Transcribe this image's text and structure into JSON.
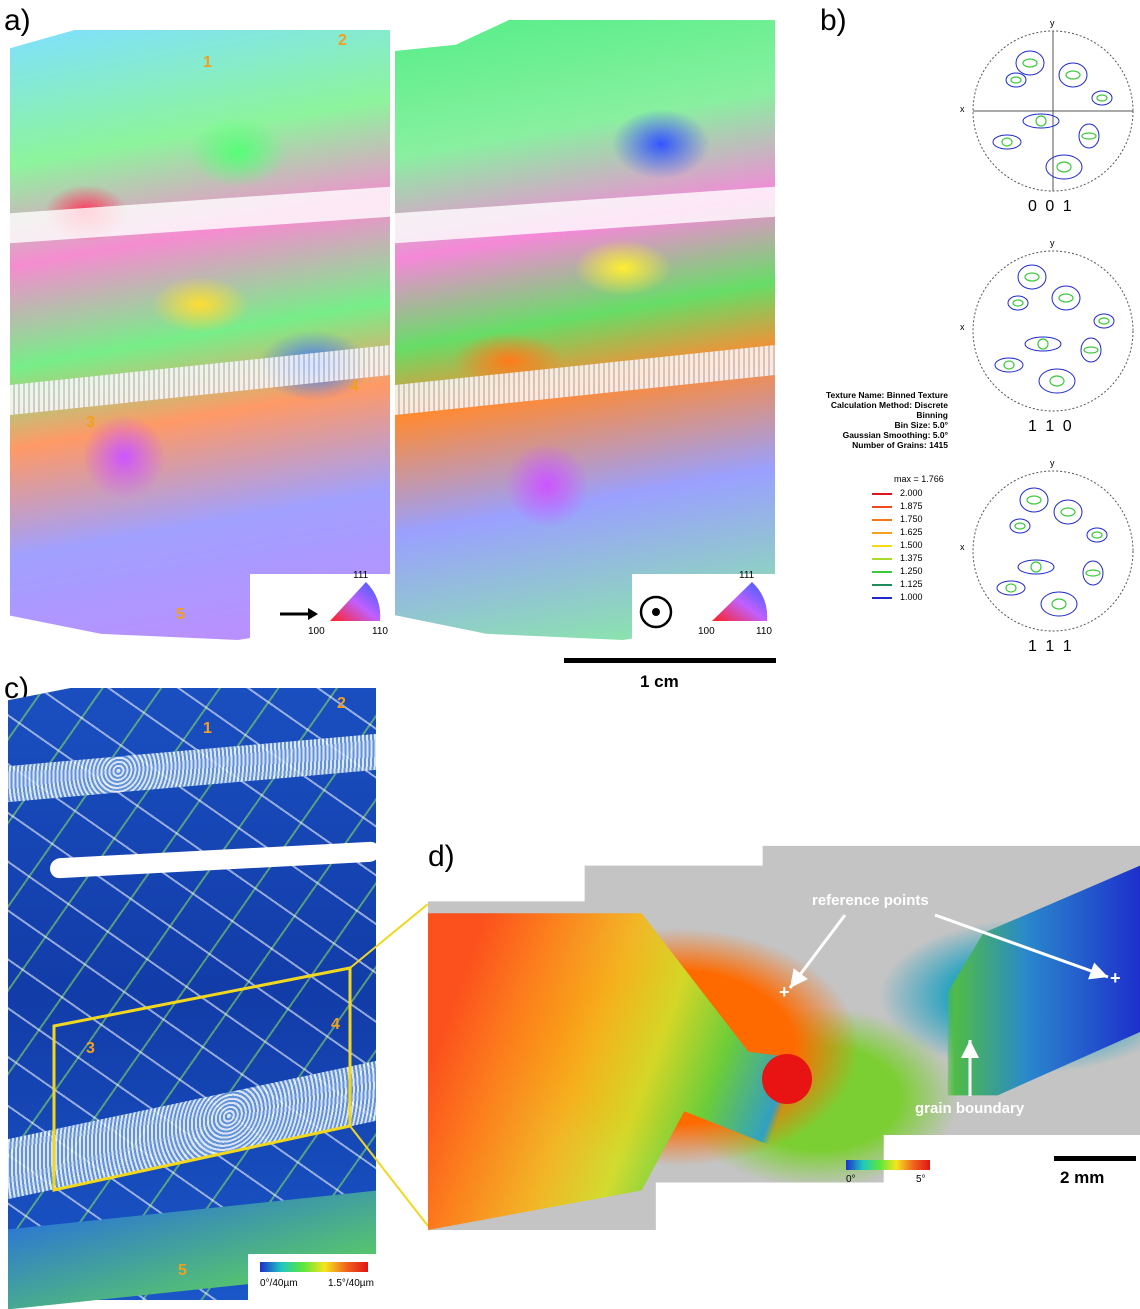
{
  "panels": {
    "a": "a)",
    "b": "b)",
    "c": "c)",
    "d": "d)"
  },
  "grain_numbers": [
    "1",
    "2",
    "3",
    "4",
    "5"
  ],
  "ipf_key": {
    "top": "111",
    "left": "100",
    "right": "110"
  },
  "scale_bars": {
    "main": "1 cm",
    "detail": "2 mm"
  },
  "texture_info": [
    "Texture Name: Binned Texture",
    "Calculation Method: Discrete Binning",
    "Bin Size: 5.0°",
    "Gaussian Smoothing: 5.0°",
    "Number of Grains: 1415"
  ],
  "pf_legend": {
    "max": "max = 1.766",
    "levels": [
      {
        "value": "2.000",
        "color": "#e0141e"
      },
      {
        "value": "1.875",
        "color": "#f04a1e"
      },
      {
        "value": "1.750",
        "color": "#f5781e"
      },
      {
        "value": "1.625",
        "color": "#f5a01e"
      },
      {
        "value": "1.500",
        "color": "#f5dc14"
      },
      {
        "value": "1.375",
        "color": "#a8dc28"
      },
      {
        "value": "1.250",
        "color": "#3cc83c"
      },
      {
        "value": "1.125",
        "color": "#1e8c5a"
      },
      {
        "value": "1.000",
        "color": "#1e28c8"
      }
    ]
  },
  "pole_figures": [
    {
      "label": "0 0 1",
      "x_axis": "x",
      "y_axis": "y"
    },
    {
      "label": "1 1 0",
      "x_axis": "x",
      "y_axis": "y"
    },
    {
      "label": "1 1 1",
      "x_axis": "x",
      "y_axis": "y"
    }
  ],
  "kam_scale": {
    "min": "0°/40µm",
    "max": "1.5°/40µm"
  },
  "misorientation_scale": {
    "min": "0°",
    "max": "5°"
  },
  "annotations": {
    "reference_points": "reference points",
    "grain_boundary": "grain boundary",
    "plus": "+"
  },
  "colors": {
    "highlight_box": "#f0d820",
    "grain_number": "#f0a020"
  }
}
